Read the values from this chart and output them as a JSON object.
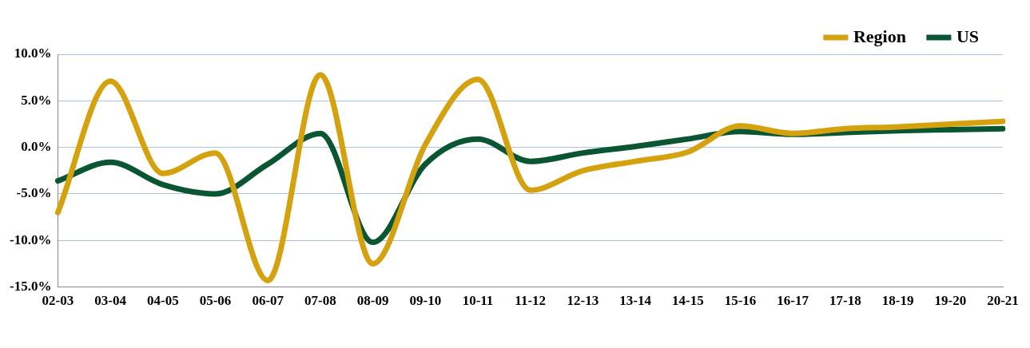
{
  "chart_data": {
    "type": "line",
    "categories": [
      "02-03",
      "03-04",
      "04-05",
      "05-06",
      "06-07",
      "07-08",
      "08-09",
      "09-10",
      "10-11",
      "11-12",
      "12-13",
      "13-14",
      "14-15",
      "15-16",
      "16-17",
      "17-18",
      "18-19",
      "19-20",
      "20-21"
    ],
    "series": [
      {
        "name": "Region",
        "color": "#d4a10f",
        "values": [
          -7.0,
          7.1,
          -2.8,
          -0.6,
          -14.3,
          7.8,
          -12.5,
          0.3,
          7.3,
          -4.6,
          -2.5,
          -1.5,
          -0.5,
          2.3,
          1.5,
          2.0,
          2.2,
          2.5,
          2.8
        ]
      },
      {
        "name": "US",
        "color": "#0b5632",
        "values": [
          -3.6,
          -1.6,
          -4.0,
          -5.0,
          -1.8,
          1.5,
          -10.2,
          -1.8,
          0.9,
          -1.5,
          -0.6,
          0.1,
          0.9,
          1.7,
          1.4,
          1.6,
          1.8,
          1.9,
          2.0
        ]
      }
    ],
    "ylim": [
      -15,
      10
    ],
    "yticks": [
      {
        "value": -15,
        "label": "-15.0%"
      },
      {
        "value": -10,
        "label": "-10.0%"
      },
      {
        "value": -5,
        "label": "-5.0%"
      },
      {
        "value": 0,
        "label": "0.0%"
      },
      {
        "value": 5,
        "label": "5.0%"
      },
      {
        "value": 10,
        "label": "10.0%"
      }
    ],
    "grid": "y",
    "legend": "top right",
    "marker": "none",
    "line_style": "solid"
  }
}
